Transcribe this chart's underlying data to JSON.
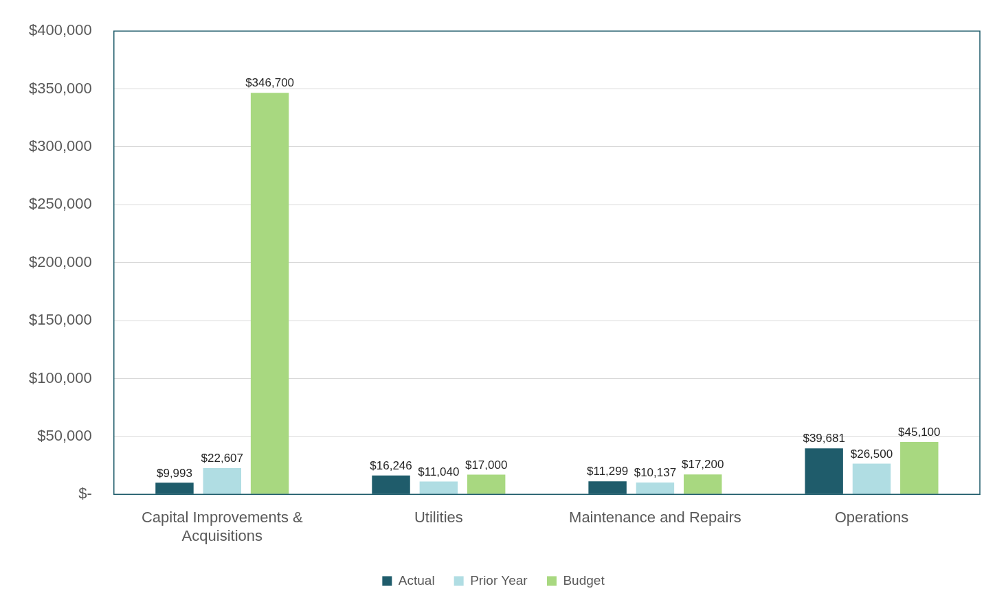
{
  "chart_data": {
    "type": "bar",
    "categories": [
      "Capital Improvements & Acquisitions",
      "Utilities",
      "Maintenance and Repairs",
      "Operations"
    ],
    "series": [
      {
        "name": "Actual",
        "color": "#1f5c6b",
        "values": [
          9993,
          16246,
          11299,
          39681
        ],
        "value_labels": [
          "$9,993",
          "$16,246",
          "$11,299",
          "$39,681"
        ]
      },
      {
        "name": "Prior Year",
        "color": "#b0dde3",
        "values": [
          22607,
          11040,
          10137,
          26500
        ],
        "value_labels": [
          "$22,607",
          "$11,040",
          "$10,137",
          "$26,500"
        ]
      },
      {
        "name": "Budget",
        "color": "#a8d880",
        "values": [
          346700,
          17000,
          17200,
          45100
        ],
        "value_labels": [
          "$346,700",
          "$17,000",
          "$17,200",
          "$45,100"
        ]
      }
    ],
    "ylim": [
      0,
      400000
    ],
    "yticks": [
      {
        "value": 0,
        "label": "$-"
      },
      {
        "value": 50000,
        "label": "$50,000"
      },
      {
        "value": 100000,
        "label": "$100,000"
      },
      {
        "value": 150000,
        "label": "$150,000"
      },
      {
        "value": 200000,
        "label": "$200,000"
      },
      {
        "value": 250000,
        "label": "$250,000"
      },
      {
        "value": 300000,
        "label": "$300,000"
      },
      {
        "value": 350000,
        "label": "$350,000"
      },
      {
        "value": 400000,
        "label": "$400,000"
      }
    ],
    "grid": "y",
    "legend": "bottom"
  }
}
